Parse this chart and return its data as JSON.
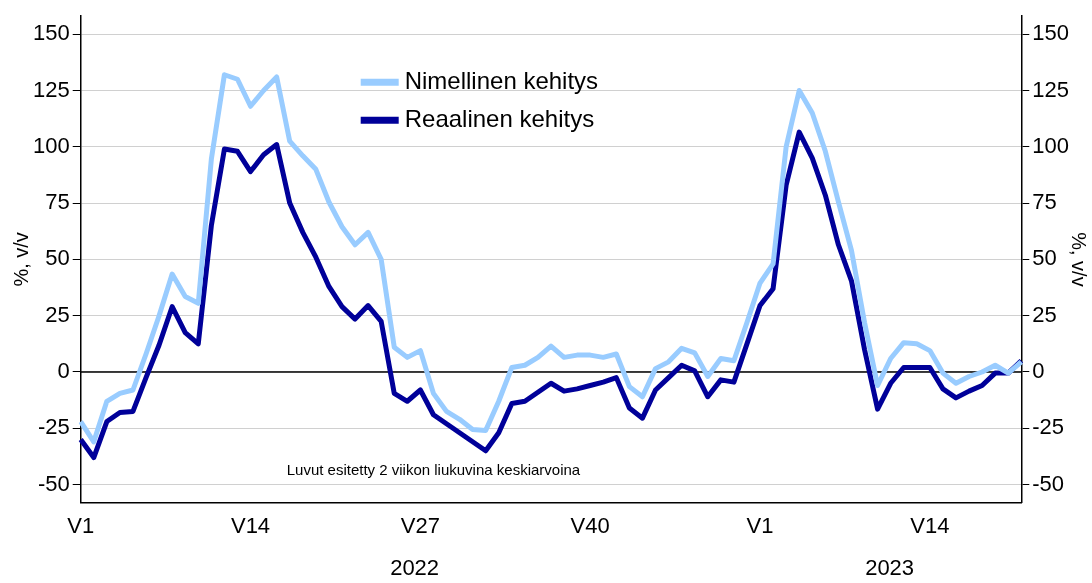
{
  "chart_data": {
    "type": "line",
    "categories": [
      "V1",
      null,
      null,
      null,
      null,
      null,
      null,
      null,
      null,
      null,
      null,
      null,
      null,
      "V14",
      null,
      null,
      null,
      null,
      null,
      null,
      null,
      null,
      null,
      null,
      null,
      null,
      "V27",
      null,
      null,
      null,
      null,
      null,
      null,
      null,
      null,
      null,
      null,
      null,
      null,
      "V40",
      null,
      null,
      null,
      null,
      null,
      null,
      null,
      null,
      null,
      null,
      null,
      null,
      "V1",
      null,
      null,
      null,
      null,
      null,
      null,
      null,
      null,
      null,
      null,
      null,
      null,
      "V14",
      null,
      null,
      null,
      null,
      null,
      null,
      null
    ],
    "series": [
      {
        "name": "Nimellinen kehitys",
        "color": "#99ccff",
        "values": [
          -22,
          -31,
          -13,
          -9.5,
          -8,
          8,
          25,
          43.5,
          33.5,
          30.5,
          94.5,
          132,
          130,
          118,
          125,
          131,
          102.5,
          96,
          90,
          75.5,
          64.5,
          56.5,
          62,
          50,
          11,
          6.5,
          9.5,
          -9.5,
          -17.5,
          -21,
          -25.5,
          -26,
          -13,
          2,
          3,
          6.5,
          11.5,
          6.5,
          7.5,
          7.5,
          6.5,
          8,
          -6.5,
          -11,
          1.5,
          4.5,
          10.5,
          8.5,
          -2,
          6,
          5,
          22,
          39.5,
          48,
          100,
          125,
          115,
          98,
          75.5,
          54,
          22,
          -6,
          6,
          13,
          12.5,
          9.5,
          -0.5,
          -5,
          -2,
          0,
          3,
          -0.5,
          4.5
        ]
      },
      {
        "name": "Reaalinen kehitys",
        "color": "#000099",
        "values": [
          -30,
          -38,
          -22,
          -18,
          -17.5,
          -2.5,
          12,
          29,
          17.5,
          12.5,
          65,
          99,
          98,
          89,
          96.5,
          101,
          75,
          62,
          51,
          38,
          29,
          23.5,
          29.5,
          22.5,
          -9.5,
          -13,
          -8,
          -19,
          -23,
          -27,
          -31,
          -35,
          -27,
          -14,
          -13,
          -9,
          -5,
          -8.5,
          -7.5,
          -6,
          -4.5,
          -2.5,
          -16,
          -20.5,
          -8,
          -2.5,
          3,
          0.5,
          -11,
          -3.5,
          -4.5,
          12.5,
          29.5,
          37,
          83,
          106.5,
          95,
          78.5,
          56.5,
          40.5,
          10,
          -16.5,
          -5,
          2,
          2,
          2,
          -7.5,
          -11.5,
          -8.5,
          -6,
          -0.5,
          -0.5,
          5
        ]
      }
    ],
    "ylim": [
      -58,
      158
    ],
    "yticks": [
      -50,
      -25,
      0,
      25,
      50,
      75,
      100,
      125,
      150
    ],
    "y2lim": [
      -58,
      158
    ],
    "y2ticks": [
      -50,
      -25,
      0,
      25,
      50,
      75,
      100,
      125,
      150
    ],
    "ylabel": "%, v/v",
    "y2label": "%, v/v",
    "ref_lines": [
      {
        "axis": "y",
        "value": 0,
        "color": "#000000"
      }
    ],
    "annotations": [
      "Luvut esitetty 2 viikon liukuvina keskiarvoina",
      "2022",
      "2023"
    ],
    "grid": "y",
    "legend": "top",
    "marker": "none",
    "line_style": "solid"
  }
}
